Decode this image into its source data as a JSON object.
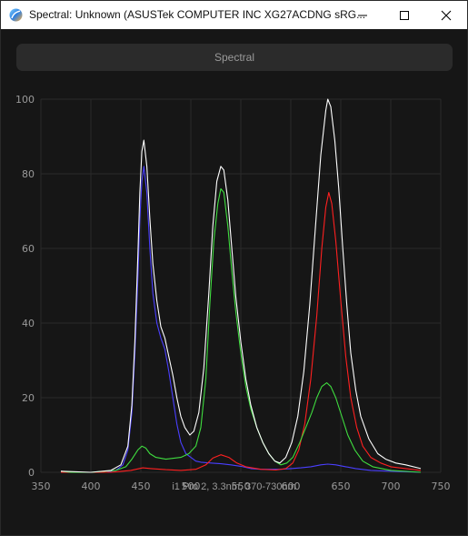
{
  "window": {
    "title": "Spectral: Unknown (ASUSTek COMPUTER INC XG27ACDNG sRG..."
  },
  "header": {
    "button_label": "Spectral"
  },
  "caption": "i1 Pro 2, 3.3nm, 370-730nm",
  "chart_data": {
    "type": "line",
    "title": "",
    "xlabel": "",
    "ylabel": "",
    "xlim": [
      350,
      750
    ],
    "ylim": [
      0,
      100
    ],
    "xticks": [
      350,
      400,
      450,
      500,
      550,
      600,
      650,
      700,
      750
    ],
    "yticks": [
      0,
      20,
      40,
      60,
      80,
      100
    ],
    "grid": true,
    "series": [
      {
        "color": "#4a3fff",
        "points": [
          [
            370,
            0.3
          ],
          [
            380,
            0
          ],
          [
            400,
            0
          ],
          [
            415,
            0
          ],
          [
            425,
            0.5
          ],
          [
            432,
            2
          ],
          [
            437,
            6
          ],
          [
            441,
            16
          ],
          [
            444,
            32
          ],
          [
            447,
            52
          ],
          [
            449,
            68
          ],
          [
            451,
            78
          ],
          [
            453,
            82
          ],
          [
            456,
            75
          ],
          [
            459,
            60
          ],
          [
            462,
            48
          ],
          [
            466,
            40
          ],
          [
            470,
            36
          ],
          [
            474,
            33
          ],
          [
            478,
            27
          ],
          [
            482,
            20
          ],
          [
            486,
            13
          ],
          [
            490,
            8
          ],
          [
            495,
            5
          ],
          [
            500,
            4
          ],
          [
            505,
            3
          ],
          [
            510,
            2.7
          ],
          [
            520,
            2.5
          ],
          [
            530,
            2.3
          ],
          [
            540,
            2
          ],
          [
            550,
            1.6
          ],
          [
            560,
            1
          ],
          [
            570,
            0.8
          ],
          [
            580,
            0.8
          ],
          [
            590,
            0.8
          ],
          [
            600,
            1
          ],
          [
            610,
            1.2
          ],
          [
            620,
            1.5
          ],
          [
            630,
            2
          ],
          [
            637,
            2.2
          ],
          [
            645,
            2
          ],
          [
            655,
            1.5
          ],
          [
            665,
            1
          ],
          [
            680,
            0.5
          ],
          [
            700,
            0.3
          ],
          [
            730,
            0
          ]
        ]
      },
      {
        "color": "#ff2020",
        "points": [
          [
            370,
            0
          ],
          [
            420,
            0
          ],
          [
            440,
            0.5
          ],
          [
            452,
            1.2
          ],
          [
            460,
            1
          ],
          [
            475,
            0.7
          ],
          [
            490,
            0.5
          ],
          [
            505,
            0.8
          ],
          [
            515,
            2
          ],
          [
            522,
            3.8
          ],
          [
            530,
            4.7
          ],
          [
            538,
            4
          ],
          [
            546,
            2.5
          ],
          [
            555,
            1.5
          ],
          [
            570,
            0.8
          ],
          [
            585,
            0.6
          ],
          [
            595,
            1
          ],
          [
            602,
            2.5
          ],
          [
            608,
            6
          ],
          [
            614,
            13
          ],
          [
            620,
            25
          ],
          [
            626,
            42
          ],
          [
            631,
            60
          ],
          [
            635,
            71
          ],
          [
            638,
            75
          ],
          [
            641,
            72
          ],
          [
            645,
            62
          ],
          [
            650,
            46
          ],
          [
            655,
            31
          ],
          [
            660,
            20
          ],
          [
            666,
            12
          ],
          [
            672,
            7
          ],
          [
            680,
            4
          ],
          [
            690,
            2.5
          ],
          [
            700,
            1.5
          ],
          [
            715,
            1
          ],
          [
            730,
            0.5
          ]
        ]
      },
      {
        "color": "#3fdc3f",
        "points": [
          [
            370,
            0.3
          ],
          [
            380,
            0
          ],
          [
            400,
            0
          ],
          [
            425,
            0.5
          ],
          [
            435,
            1.5
          ],
          [
            441,
            3.5
          ],
          [
            447,
            6
          ],
          [
            451,
            7
          ],
          [
            455,
            6.5
          ],
          [
            459,
            5
          ],
          [
            465,
            4
          ],
          [
            475,
            3.5
          ],
          [
            490,
            4
          ],
          [
            498,
            5
          ],
          [
            505,
            7
          ],
          [
            510,
            12
          ],
          [
            515,
            25
          ],
          [
            519,
            45
          ],
          [
            523,
            62
          ],
          [
            527,
            72
          ],
          [
            530,
            76
          ],
          [
            533,
            75
          ],
          [
            537,
            66
          ],
          [
            541,
            54
          ],
          [
            545,
            43
          ],
          [
            550,
            32
          ],
          [
            555,
            23
          ],
          [
            560,
            17
          ],
          [
            566,
            12
          ],
          [
            572,
            8
          ],
          [
            578,
            5
          ],
          [
            584,
            3
          ],
          [
            590,
            2
          ],
          [
            596,
            2.5
          ],
          [
            602,
            4
          ],
          [
            609,
            8
          ],
          [
            615,
            12
          ],
          [
            621,
            16
          ],
          [
            626,
            20
          ],
          [
            631,
            23
          ],
          [
            636,
            24
          ],
          [
            640,
            23
          ],
          [
            645,
            20
          ],
          [
            651,
            15
          ],
          [
            657,
            10
          ],
          [
            664,
            6
          ],
          [
            672,
            3
          ],
          [
            682,
            1.5
          ],
          [
            700,
            0.5
          ],
          [
            730,
            0
          ]
        ]
      },
      {
        "color": "#ffffff",
        "points": [
          [
            370,
            0.3
          ],
          [
            400,
            0
          ],
          [
            420,
            0.5
          ],
          [
            430,
            2
          ],
          [
            437,
            7
          ],
          [
            441,
            18
          ],
          [
            444,
            35
          ],
          [
            447,
            58
          ],
          [
            449,
            75
          ],
          [
            451,
            86
          ],
          [
            453,
            89
          ],
          [
            456,
            82
          ],
          [
            459,
            68
          ],
          [
            462,
            56
          ],
          [
            466,
            46
          ],
          [
            470,
            39
          ],
          [
            474,
            36
          ],
          [
            478,
            31
          ],
          [
            482,
            26
          ],
          [
            486,
            20
          ],
          [
            490,
            15
          ],
          [
            494,
            12
          ],
          [
            499,
            10
          ],
          [
            503,
            11
          ],
          [
            508,
            16
          ],
          [
            513,
            28
          ],
          [
            518,
            48
          ],
          [
            522,
            66
          ],
          [
            526,
            78
          ],
          [
            530,
            82
          ],
          [
            533,
            81
          ],
          [
            537,
            73
          ],
          [
            541,
            60
          ],
          [
            545,
            47
          ],
          [
            550,
            35
          ],
          [
            555,
            25
          ],
          [
            560,
            18
          ],
          [
            566,
            12
          ],
          [
            572,
            8
          ],
          [
            578,
            5
          ],
          [
            584,
            3
          ],
          [
            589,
            2.5
          ],
          [
            595,
            4
          ],
          [
            601,
            8
          ],
          [
            607,
            15
          ],
          [
            613,
            27
          ],
          [
            619,
            45
          ],
          [
            625,
            67
          ],
          [
            630,
            85
          ],
          [
            635,
            97
          ],
          [
            637,
            100
          ],
          [
            640,
            98
          ],
          [
            644,
            89
          ],
          [
            648,
            76
          ],
          [
            652,
            60
          ],
          [
            656,
            45
          ],
          [
            660,
            32
          ],
          [
            665,
            22
          ],
          [
            670,
            15
          ],
          [
            678,
            9
          ],
          [
            687,
            5
          ],
          [
            695,
            3.5
          ],
          [
            705,
            2.5
          ],
          [
            715,
            2
          ],
          [
            730,
            1
          ]
        ]
      }
    ]
  }
}
